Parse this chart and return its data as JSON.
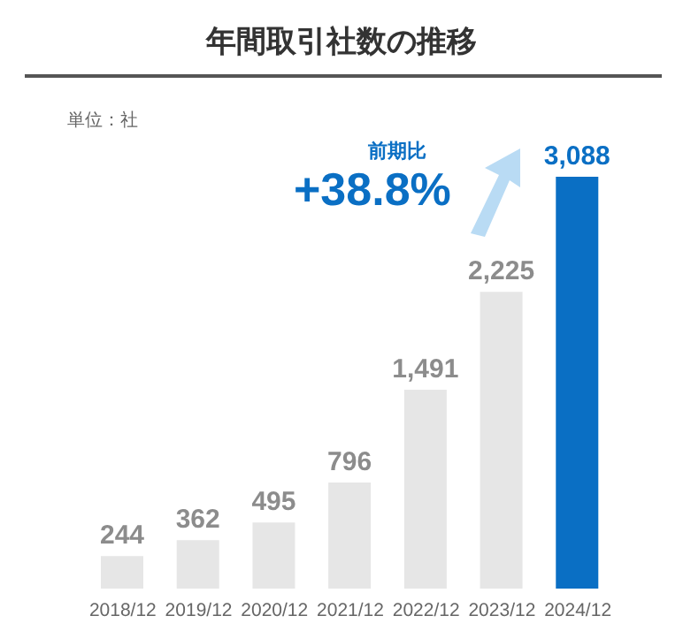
{
  "chart_data": {
    "type": "bar",
    "title": "年間取引社数の推移",
    "categories": [
      "2018/12",
      "2019/12",
      "2020/12",
      "2021/12",
      "2022/12",
      "2023/12",
      "2024/12"
    ],
    "values": [
      244,
      362,
      495,
      796,
      1491,
      2225,
      3088
    ],
    "colors": [
      "#e6e6e6",
      "#e6e6e6",
      "#e6e6e6",
      "#e6e6e6",
      "#e6e6e6",
      "#e6e6e6",
      "#0a6fc4"
    ],
    "value_labels": [
      "244",
      "362",
      "495",
      "796",
      "1,491",
      "2,225",
      "3,088"
    ],
    "annotations": [
      "単位：社",
      "前期比",
      "+38.8%"
    ]
  }
}
